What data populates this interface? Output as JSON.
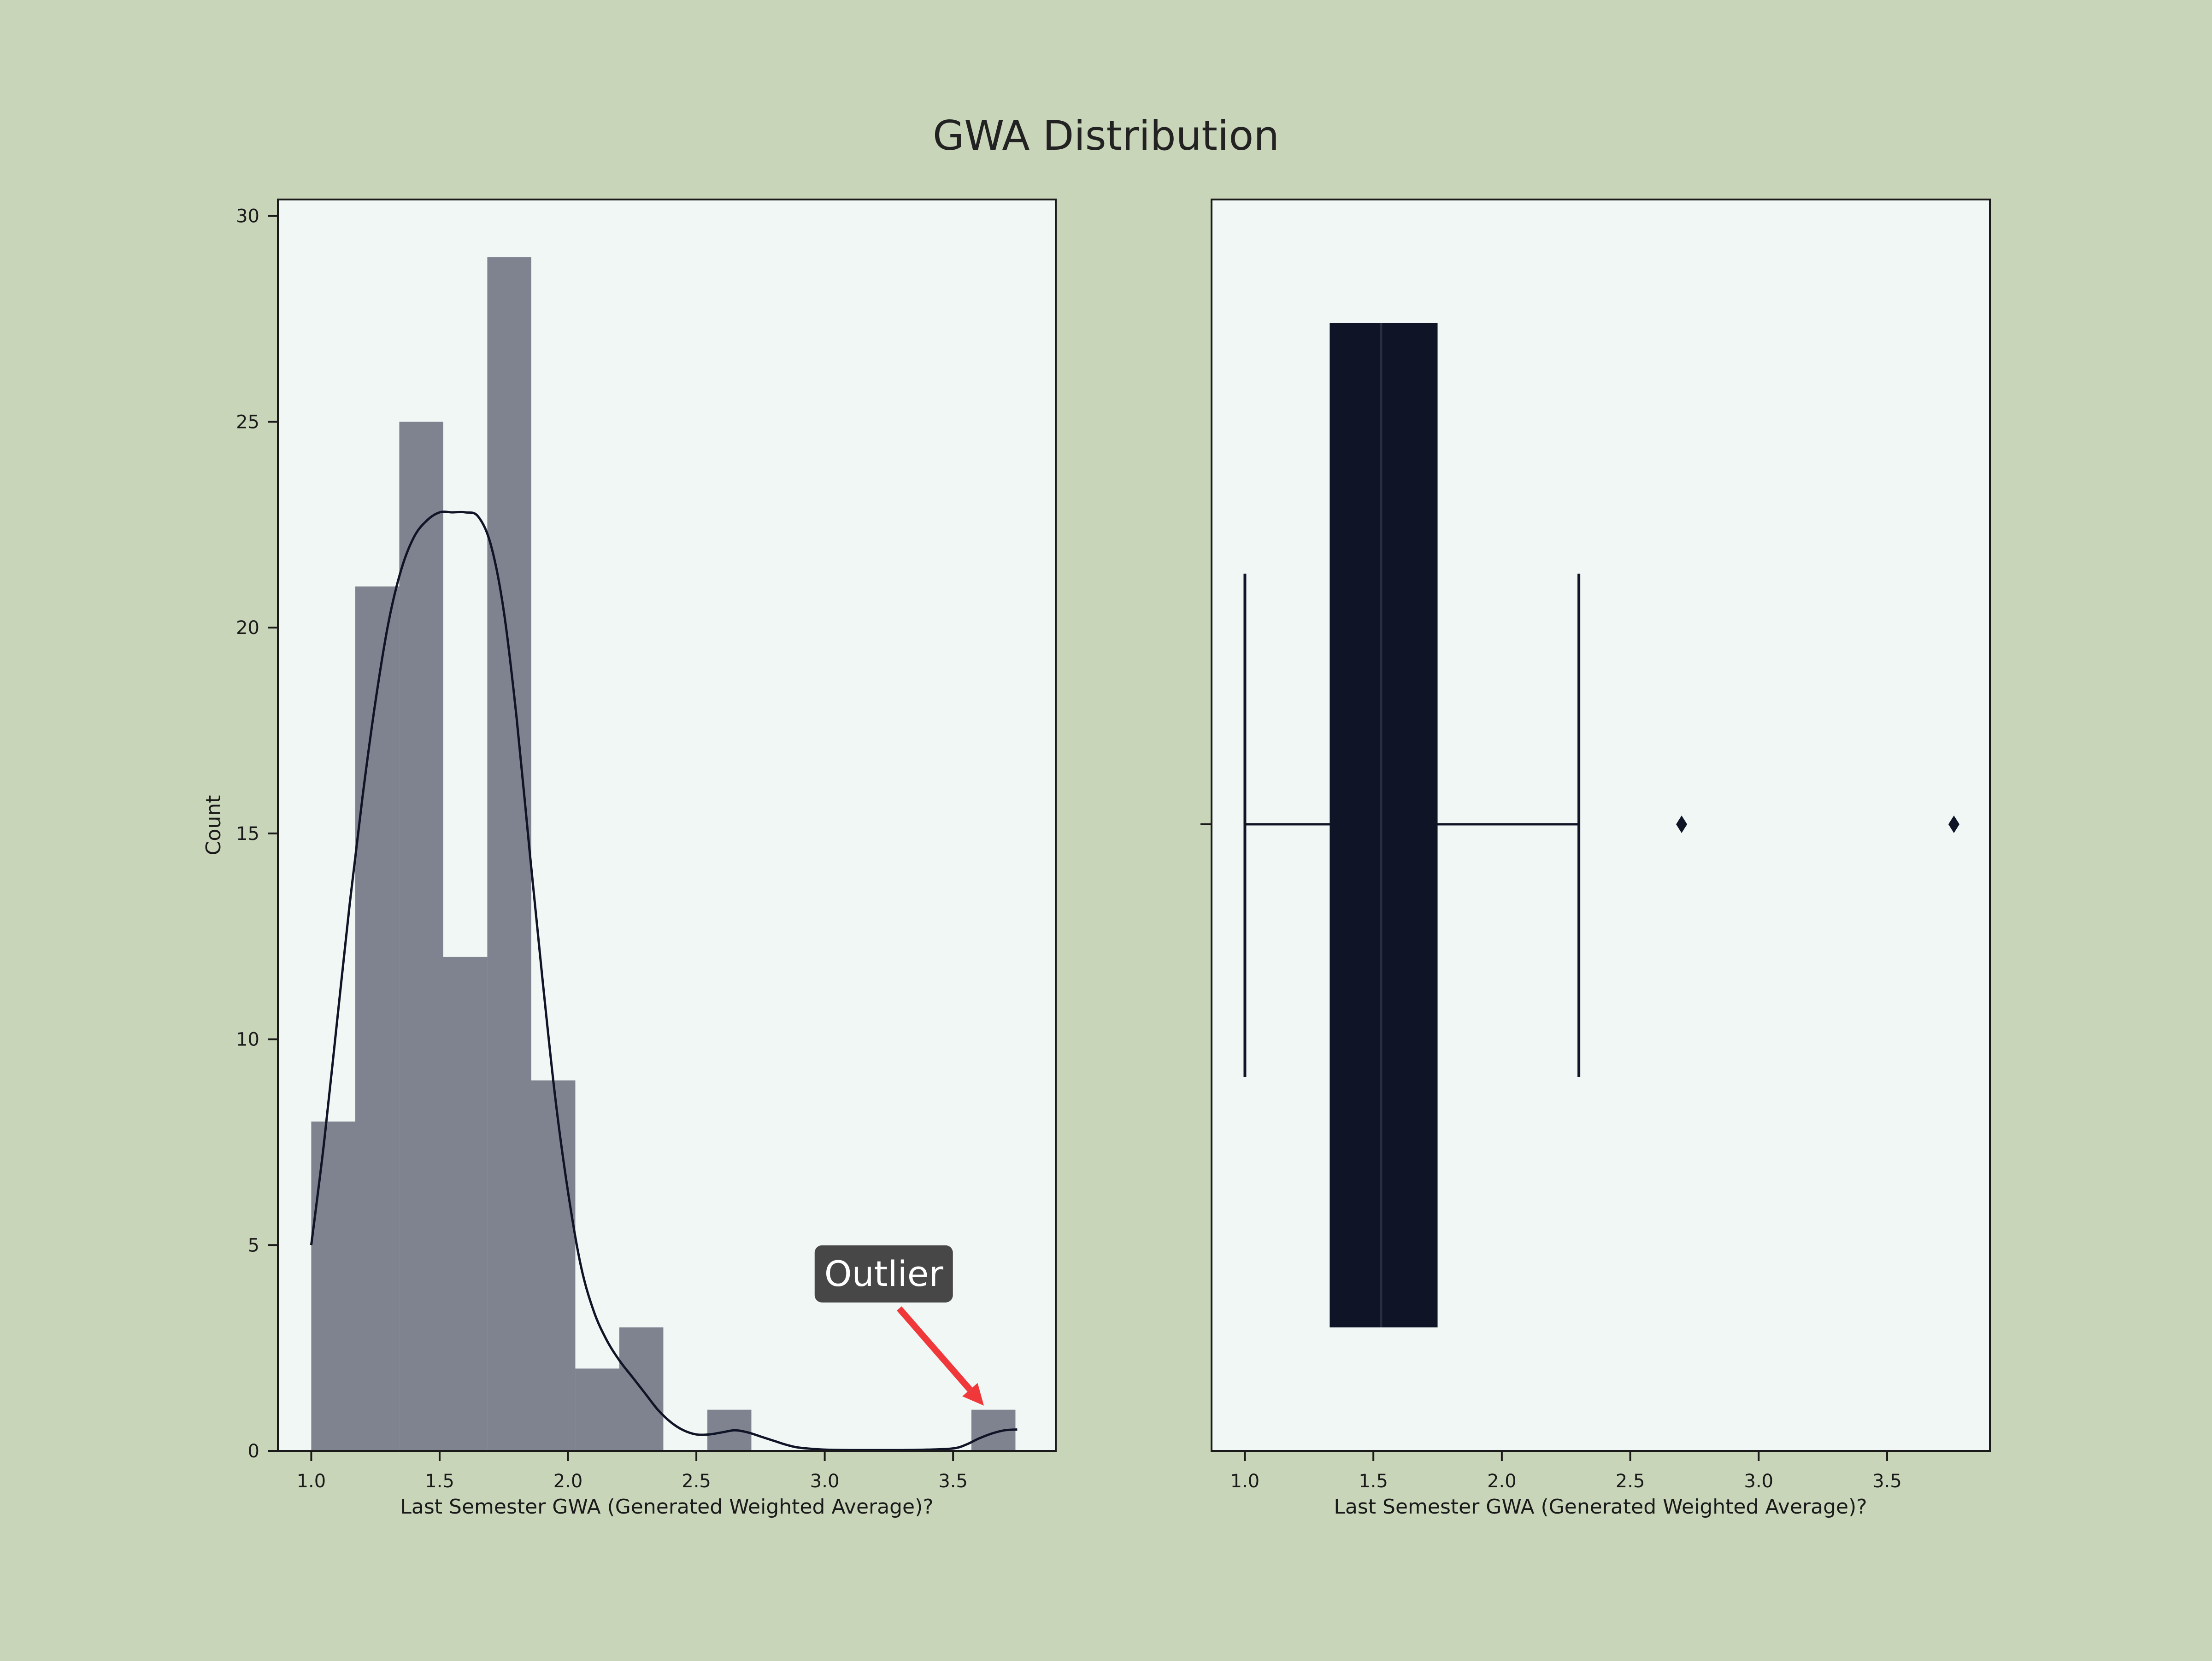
{
  "title": "GWA Distribution",
  "colors": {
    "page_bg": "#c9d5b9",
    "plot_bg": "#f1f7f4",
    "bar_fill": "#7f8390",
    "kde_line": "#0f1426",
    "box_fill": "#0f1426",
    "whisker": "#0f1426",
    "axis": "#1a1a1a",
    "annotation_bg": "#474747",
    "annotation_text": "#ffffff",
    "arrow": "#f0373a"
  },
  "chart_data": [
    {
      "type": "histogram",
      "xlabel": "Last Semester GWA (Generated Weighted Average)?",
      "ylabel": "Count",
      "xlim": [
        0.87,
        3.9
      ],
      "ylim": [
        0,
        30.4
      ],
      "xticks": [
        "1.0",
        "1.5",
        "2.0",
        "2.5",
        "3.0",
        "3.5"
      ],
      "yticks": [
        "0",
        "5",
        "10",
        "15",
        "20",
        "25",
        "30"
      ],
      "grid": false,
      "bins": [
        {
          "x0": 1.0,
          "x1": 1.1714,
          "count": 8
        },
        {
          "x0": 1.1714,
          "x1": 1.3429,
          "count": 21
        },
        {
          "x0": 1.3429,
          "x1": 1.5143,
          "count": 25
        },
        {
          "x0": 1.5143,
          "x1": 1.6857,
          "count": 12
        },
        {
          "x0": 1.6857,
          "x1": 1.8571,
          "count": 29
        },
        {
          "x0": 1.8571,
          "x1": 2.0286,
          "count": 9
        },
        {
          "x0": 2.0286,
          "x1": 2.2,
          "count": 2
        },
        {
          "x0": 2.2,
          "x1": 2.3714,
          "count": 3
        },
        {
          "x0": 2.3714,
          "x1": 2.5429,
          "count": 0
        },
        {
          "x0": 2.5429,
          "x1": 2.7143,
          "count": 1
        },
        {
          "x0": 2.7143,
          "x1": 2.8857,
          "count": 0
        },
        {
          "x0": 2.8857,
          "x1": 3.0571,
          "count": 0
        },
        {
          "x0": 3.0571,
          "x1": 3.2286,
          "count": 0
        },
        {
          "x0": 3.2286,
          "x1": 3.4,
          "count": 0
        },
        {
          "x0": 3.4,
          "x1": 3.5714,
          "count": 0
        },
        {
          "x0": 3.5714,
          "x1": 3.7429,
          "count": 1
        }
      ],
      "kde": {
        "x": [
          1.0,
          1.05,
          1.1,
          1.15,
          1.2,
          1.25,
          1.3,
          1.35,
          1.4,
          1.45,
          1.5,
          1.55,
          1.6,
          1.65,
          1.7,
          1.75,
          1.8,
          1.85,
          1.9,
          1.95,
          2.0,
          2.05,
          2.1,
          2.15,
          2.2,
          2.25,
          2.3,
          2.35,
          2.4,
          2.45,
          2.5,
          2.55,
          2.6,
          2.65,
          2.7,
          2.75,
          2.8,
          2.85,
          2.9,
          3.0,
          3.1,
          3.2,
          3.3,
          3.4,
          3.5,
          3.55,
          3.6,
          3.65,
          3.7,
          3.75
        ],
        "y": [
          5.0,
          7.5,
          10.4,
          13.3,
          15.9,
          18.2,
          20.1,
          21.4,
          22.2,
          22.6,
          22.8,
          22.8,
          22.8,
          22.7,
          22.0,
          20.4,
          17.8,
          14.6,
          11.5,
          8.6,
          6.3,
          4.5,
          3.4,
          2.7,
          2.2,
          1.8,
          1.4,
          1.0,
          0.7,
          0.5,
          0.4,
          0.4,
          0.45,
          0.5,
          0.45,
          0.35,
          0.25,
          0.15,
          0.08,
          0.03,
          0.02,
          0.02,
          0.02,
          0.03,
          0.06,
          0.15,
          0.3,
          0.42,
          0.5,
          0.52
        ]
      },
      "annotation": {
        "text": "Outlier",
        "target_x": 3.62,
        "target_y": 1.1,
        "text_x": 3.23,
        "text_y": 4.3
      }
    },
    {
      "type": "boxplot",
      "xlabel": "Last Semester GWA (Generated Weighted Average)?",
      "xlim": [
        0.87,
        3.9
      ],
      "xticks": [
        "1.0",
        "1.5",
        "2.0",
        "2.5",
        "3.0",
        "3.5"
      ],
      "grid": false,
      "whisker_low": 1.0,
      "q1": 1.33,
      "median": 1.53,
      "q3": 1.75,
      "whisker_high": 2.3,
      "outliers": [
        2.7,
        3.76
      ]
    }
  ]
}
